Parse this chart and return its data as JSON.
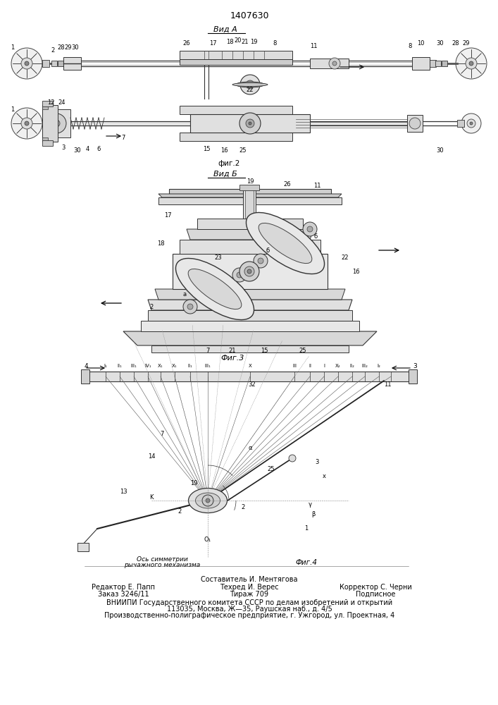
{
  "patent_number": "1407630",
  "bg": "#ffffff",
  "lc": "#000000",
  "footer": [
    "Составитель И. Ментягова",
    "Редактор Е. Папп",
    "Техред И. Верес",
    "Корректор С. Черни",
    "Заказ 3246/11",
    "Тираж 709",
    "Подписное",
    "ВНИИПИ Государственного комитета СССР по делам изобретений и открытий",
    "113035, Москва, Ж—35, Раушская наб., д. 4/5",
    "Производственно-полиграфическое предприятие, г. Ужгород, ул. Проектная, 4"
  ]
}
